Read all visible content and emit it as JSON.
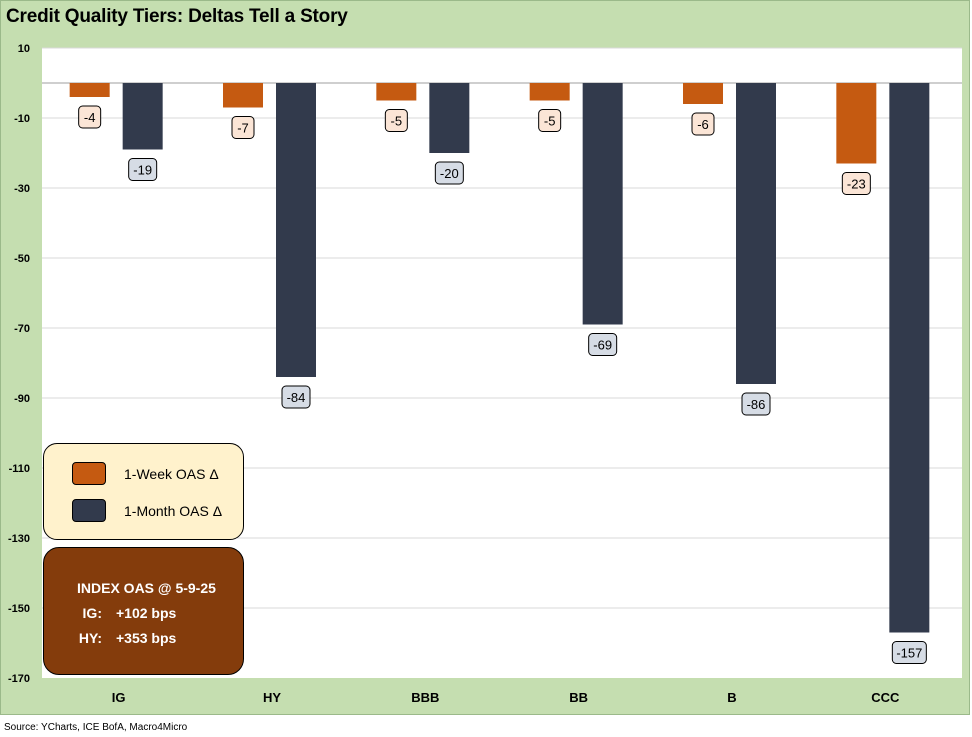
{
  "title": "Credit Quality Tiers: Deltas Tell a Story",
  "source": "Source: YCharts, ICE BofA, Macro4Micro",
  "colors": {
    "week": "#c55a11",
    "month": "#323a4c",
    "week_label_bg": "#fbe5d6",
    "month_label_bg": "#d6dce5",
    "legend_bg": "#fff2cc",
    "index_box_bg": "#843c0c",
    "frame_bg": "#c5deb0"
  },
  "legend": {
    "week_label": "1-Week OAS Δ",
    "month_label": "1-Month OAS Δ"
  },
  "index_box": {
    "title": "INDEX OAS @ 5-9-25",
    "rows": [
      {
        "key": "IG:",
        "value": "+102 bps"
      },
      {
        "key": "HY:",
        "value": "+353 bps"
      }
    ]
  },
  "chart_data": {
    "type": "bar",
    "title": "Credit Quality Tiers: Deltas Tell a Story",
    "categories": [
      "IG",
      "HY",
      "BBB",
      "BB",
      "B",
      "CCC"
    ],
    "series": [
      {
        "name": "1-Week OAS Δ",
        "values": [
          -4,
          -7,
          -5,
          -5,
          -6,
          -23
        ]
      },
      {
        "name": "1-Month OAS Δ",
        "values": [
          -19,
          -84,
          -20,
          -69,
          -86,
          -157
        ]
      }
    ],
    "ylim": [
      -170,
      10
    ],
    "yticks": [
      10,
      -10,
      -30,
      -50,
      -70,
      -90,
      -110,
      -130,
      -150,
      -170
    ],
    "grid": true,
    "legend_position": "bottom-left"
  }
}
